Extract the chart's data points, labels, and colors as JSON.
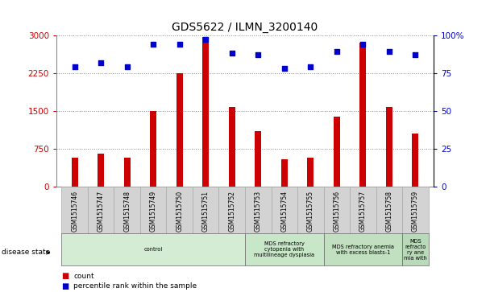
{
  "title": "GDS5622 / ILMN_3200140",
  "samples": [
    "GSM1515746",
    "GSM1515747",
    "GSM1515748",
    "GSM1515749",
    "GSM1515750",
    "GSM1515751",
    "GSM1515752",
    "GSM1515753",
    "GSM1515754",
    "GSM1515755",
    "GSM1515756",
    "GSM1515757",
    "GSM1515758",
    "GSM1515759"
  ],
  "counts": [
    580,
    660,
    570,
    1500,
    2250,
    2960,
    1580,
    1100,
    550,
    570,
    1380,
    2850,
    1580,
    1050
  ],
  "percentiles": [
    79,
    82,
    79,
    94,
    94,
    97,
    88,
    87,
    78,
    79,
    89,
    94,
    89,
    87
  ],
  "bar_color": "#cc0000",
  "dot_color": "#0000cc",
  "ylim_left": [
    0,
    3000
  ],
  "ylim_right": [
    0,
    100
  ],
  "yticks_left": [
    0,
    750,
    1500,
    2250,
    3000
  ],
  "yticks_right": [
    0,
    25,
    50,
    75,
    100
  ],
  "ytick_labels_right": [
    "0",
    "25",
    "50",
    "75",
    "100%"
  ],
  "disease_groups": [
    {
      "label": "control",
      "start": 0,
      "end": 6,
      "color": "#d4ecd4"
    },
    {
      "label": "MDS refractory\ncytopenia with\nmultilineage dysplasia",
      "start": 7,
      "end": 9,
      "color": "#c8e6c8"
    },
    {
      "label": "MDS refractory anemia\nwith excess blasts-1",
      "start": 10,
      "end": 12,
      "color": "#c0e0c0"
    },
    {
      "label": "MDS\nrefracto\nry ane\nmia with",
      "start": 13,
      "end": 13,
      "color": "#b8dab8"
    }
  ],
  "disease_state_label": "disease state",
  "legend_items": [
    {
      "label": "count",
      "color": "#cc0000"
    },
    {
      "label": "percentile rank within the sample",
      "color": "#0000cc"
    }
  ],
  "bg_color": "#ffffff",
  "grid_color": "#888888",
  "tick_label_color_left": "#cc0000",
  "tick_label_color_right": "#0000cc",
  "bar_width": 0.25
}
